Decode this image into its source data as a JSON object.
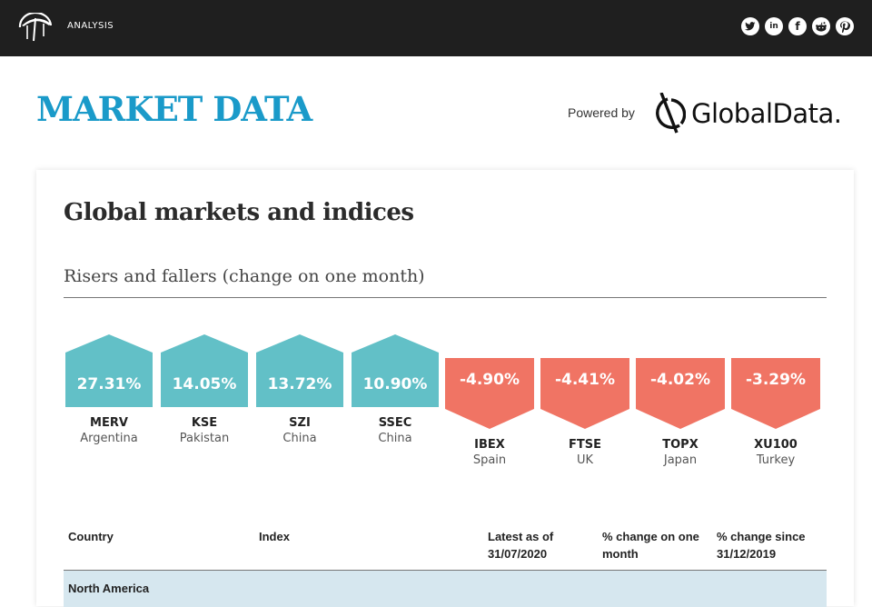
{
  "header": {
    "nav_label": "ANALYSIS",
    "social_icons": [
      "twitter-icon",
      "linkedin-icon",
      "facebook-icon",
      "reddit-icon",
      "pinterest-icon"
    ],
    "social_glyphs": [
      "t",
      "in",
      "f",
      "r",
      "p"
    ]
  },
  "page": {
    "title": "MARKET DATA",
    "powered_by": "Powered by",
    "brand": "GlobalData."
  },
  "card": {
    "title": "Global markets and indices",
    "subtitle": "Risers and fallers (change on one month)"
  },
  "risers": [
    {
      "pct": "27.31%",
      "code": "MERV",
      "country": "Argentina"
    },
    {
      "pct": "14.05%",
      "code": "KSE",
      "country": "Pakistan"
    },
    {
      "pct": "13.72%",
      "code": "SZI",
      "country": "China"
    },
    {
      "pct": "10.90%",
      "code": "SSEC",
      "country": "China"
    }
  ],
  "fallers": [
    {
      "pct": "-4.90%",
      "code": "IBEX",
      "country": "Spain"
    },
    {
      "pct": "-4.41%",
      "code": "FTSE",
      "country": "UK"
    },
    {
      "pct": "-4.02%",
      "code": "TOPX",
      "country": "Japan"
    },
    {
      "pct": "-3.29%",
      "code": "XU100",
      "country": "Turkey"
    }
  ],
  "table": {
    "headers": {
      "country": "Country",
      "index": "Index",
      "latest_1": "Latest as of",
      "latest_2": "31/07/2020",
      "month_1": "% change on one",
      "month_2": "month",
      "since_1": "% change since",
      "since_2": "31/12/2019"
    },
    "first_region": "North America"
  },
  "colors": {
    "riser": "#62c0c7",
    "faller": "#f07464",
    "title": "#1a9ac9",
    "region_bg": "#d6e7ef"
  }
}
